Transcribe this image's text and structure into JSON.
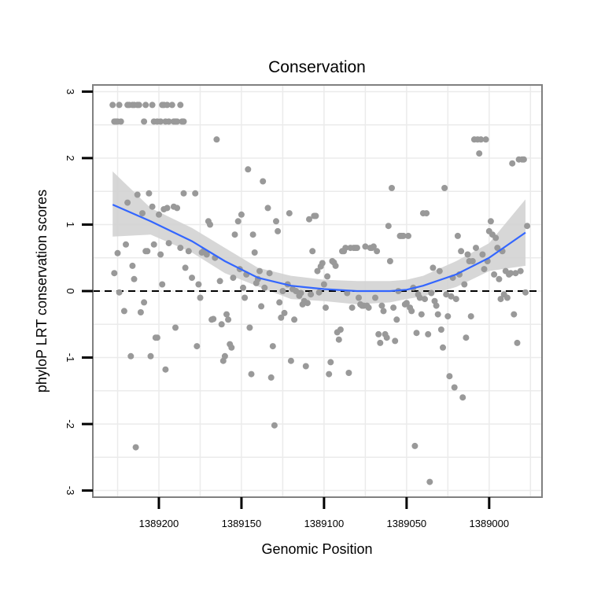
{
  "chart_data": {
    "type": "scatter",
    "title": "Conservation",
    "xlabel": "Genomic Position",
    "ylabel": "phyloP LRT conservation scores",
    "x_reversed": true,
    "xlim": [
      1389240,
      1388968
    ],
    "ylim": [
      -3.1,
      3.1
    ],
    "x_ticks": [
      1389200,
      1389150,
      1389100,
      1389050,
      1389000
    ],
    "x_tick_labels": [
      "1389200",
      "1389150",
      "1389100",
      "1389050",
      "1389000"
    ],
    "y_ticks": [
      -3,
      -2,
      -1,
      0,
      1,
      2,
      3
    ],
    "y_tick_labels": [
      "-3",
      "-2",
      "-1",
      "0",
      "1",
      "2",
      "3"
    ],
    "reference_line_y": 0,
    "colors": {
      "points": "#999999",
      "smooth_line": "#3366ff",
      "ribbon": "#d3d3d3",
      "panel_border": "#808080",
      "grid": "#ebebeb"
    },
    "points": [
      [
        1389228,
        2.8
      ],
      [
        1389227,
        2.55
      ],
      [
        1389226,
        2.55
      ],
      [
        1389225,
        2.55
      ],
      [
        1389224,
        2.8
      ],
      [
        1389223,
        2.55
      ],
      [
        1389219,
        2.8
      ],
      [
        1389218,
        2.8
      ],
      [
        1389216,
        2.8
      ],
      [
        1389215,
        2.8
      ],
      [
        1389213,
        2.8
      ],
      [
        1389212,
        2.8
      ],
      [
        1389209,
        2.55
      ],
      [
        1389208,
        2.8
      ],
      [
        1389204,
        2.8
      ],
      [
        1389203,
        2.55
      ],
      [
        1389201,
        2.55
      ],
      [
        1389199,
        2.55
      ],
      [
        1389198,
        2.8
      ],
      [
        1389197,
        2.8
      ],
      [
        1389196,
        2.55
      ],
      [
        1389195,
        2.8
      ],
      [
        1389194,
        2.55
      ],
      [
        1389192,
        2.8
      ],
      [
        1389191,
        2.55
      ],
      [
        1389190,
        2.55
      ],
      [
        1389189,
        2.55
      ],
      [
        1389187,
        2.8
      ],
      [
        1389186,
        2.55
      ],
      [
        1389185,
        2.55
      ],
      [
        1389227,
        0.27
      ],
      [
        1389225,
        0.57
      ],
      [
        1389224,
        -0.02
      ],
      [
        1389221,
        -0.3
      ],
      [
        1389220,
        0.7
      ],
      [
        1389219,
        1.33
      ],
      [
        1389217,
        -0.98
      ],
      [
        1389216,
        0.38
      ],
      [
        1389215,
        0.18
      ],
      [
        1389214,
        -2.35
      ],
      [
        1389213,
        1.45
      ],
      [
        1389211,
        -0.32
      ],
      [
        1389210,
        1.17
      ],
      [
        1389209,
        -0.17
      ],
      [
        1389208,
        0.6
      ],
      [
        1389207,
        0.6
      ],
      [
        1389206,
        1.47
      ],
      [
        1389205,
        -0.98
      ],
      [
        1389204,
        1.27
      ],
      [
        1389203,
        0.7
      ],
      [
        1389202,
        -0.7
      ],
      [
        1389201,
        -0.7
      ],
      [
        1389200,
        1.15
      ],
      [
        1389199,
        0.55
      ],
      [
        1389198,
        0.1
      ],
      [
        1389197,
        1.23
      ],
      [
        1389196,
        -1.18
      ],
      [
        1389195,
        1.25
      ],
      [
        1389194,
        0.72
      ],
      [
        1389191,
        1.27
      ],
      [
        1389190,
        -0.55
      ],
      [
        1389189,
        1.25
      ],
      [
        1389187,
        0.65
      ],
      [
        1389185,
        1.47
      ],
      [
        1389184,
        0.35
      ],
      [
        1389182,
        0.6
      ],
      [
        1389180,
        0.2
      ],
      [
        1389178,
        1.47
      ],
      [
        1389177,
        -0.83
      ],
      [
        1389176,
        0.1
      ],
      [
        1389175,
        -0.1
      ],
      [
        1389174,
        0.58
      ],
      [
        1389173,
        0.6
      ],
      [
        1389171,
        0.55
      ],
      [
        1389170,
        1.05
      ],
      [
        1389169,
        1.0
      ],
      [
        1389168,
        -0.43
      ],
      [
        1389167,
        -0.42
      ],
      [
        1389166,
        0.5
      ],
      [
        1389165,
        2.28
      ],
      [
        1389163,
        0.15
      ],
      [
        1389162,
        -0.5
      ],
      [
        1389161,
        -1.05
      ],
      [
        1389160,
        -0.98
      ],
      [
        1389159,
        -0.35
      ],
      [
        1389158,
        -0.43
      ],
      [
        1389157,
        -0.8
      ],
      [
        1389156,
        -0.85
      ],
      [
        1389155,
        0.2
      ],
      [
        1389154,
        0.85
      ],
      [
        1389152,
        1.05
      ],
      [
        1389151,
        0.33
      ],
      [
        1389150,
        1.15
      ],
      [
        1389149,
        0.05
      ],
      [
        1389148,
        -0.1
      ],
      [
        1389147,
        0.25
      ],
      [
        1389146,
        1.83
      ],
      [
        1389145,
        -0.55
      ],
      [
        1389144,
        -1.25
      ],
      [
        1389143,
        0.85
      ],
      [
        1389142,
        0.58
      ],
      [
        1389141,
        0.12
      ],
      [
        1389140,
        0.18
      ],
      [
        1389139,
        0.3
      ],
      [
        1389138,
        -0.23
      ],
      [
        1389137,
        1.65
      ],
      [
        1389136,
        0.05
      ],
      [
        1389134,
        1.25
      ],
      [
        1389133,
        0.27
      ],
      [
        1389132,
        -1.3
      ],
      [
        1389131,
        -0.83
      ],
      [
        1389130,
        -2.02
      ],
      [
        1389129,
        1.05
      ],
      [
        1389128,
        0.9
      ],
      [
        1389127,
        -0.17
      ],
      [
        1389126,
        -0.4
      ],
      [
        1389125,
        0.0
      ],
      [
        1389124,
        -0.33
      ],
      [
        1389122,
        0.1
      ],
      [
        1389121,
        1.17
      ],
      [
        1389120,
        -1.05
      ],
      [
        1389119,
        0.03
      ],
      [
        1389118,
        -0.43
      ],
      [
        1389117,
        0.0
      ],
      [
        1389115,
        -0.07
      ],
      [
        1389114,
        -0.03
      ],
      [
        1389113,
        -0.2
      ],
      [
        1389112,
        -0.15
      ],
      [
        1389111,
        -1.13
      ],
      [
        1389110,
        -0.18
      ],
      [
        1389109,
        1.08
      ],
      [
        1389108,
        -0.05
      ],
      [
        1389107,
        0.6
      ],
      [
        1389106,
        1.13
      ],
      [
        1389105,
        1.13
      ],
      [
        1389104,
        0.3
      ],
      [
        1389103,
        -0.02
      ],
      [
        1389102,
        0.37
      ],
      [
        1389101,
        0.42
      ],
      [
        1389100,
        0.1
      ],
      [
        1389099,
        -0.25
      ],
      [
        1389098,
        0.22
      ],
      [
        1389097,
        -1.25
      ],
      [
        1389096,
        -1.07
      ],
      [
        1389095,
        0.45
      ],
      [
        1389094,
        0.43
      ],
      [
        1389093,
        0.38
      ],
      [
        1389092,
        -0.62
      ],
      [
        1389091,
        -0.73
      ],
      [
        1389090,
        -0.58
      ],
      [
        1389089,
        0.6
      ],
      [
        1389088,
        0.6
      ],
      [
        1389087,
        0.65
      ],
      [
        1389086,
        -0.03
      ],
      [
        1389085,
        -1.23
      ],
      [
        1389084,
        0.65
      ],
      [
        1389083,
        -0.25
      ],
      [
        1389082,
        0.65
      ],
      [
        1389081,
        0.65
      ],
      [
        1389080,
        0.65
      ],
      [
        1389079,
        -0.1
      ],
      [
        1389078,
        -0.2
      ],
      [
        1389077,
        -0.22
      ],
      [
        1389076,
        -0.22
      ],
      [
        1389075,
        0.67
      ],
      [
        1389074,
        -0.22
      ],
      [
        1389073,
        -0.25
      ],
      [
        1389072,
        0.65
      ],
      [
        1389071,
        0.65
      ],
      [
        1389070,
        0.67
      ],
      [
        1389069,
        -0.1
      ],
      [
        1389068,
        0.6
      ],
      [
        1389067,
        -0.65
      ],
      [
        1389066,
        -0.78
      ],
      [
        1389065,
        -0.22
      ],
      [
        1389064,
        -0.3
      ],
      [
        1389063,
        -0.65
      ],
      [
        1389062,
        -0.7
      ],
      [
        1389061,
        0.98
      ],
      [
        1389060,
        0.45
      ],
      [
        1389059,
        1.55
      ],
      [
        1389058,
        -0.25
      ],
      [
        1389057,
        -0.75
      ],
      [
        1389056,
        -0.43
      ],
      [
        1389055,
        0.0
      ],
      [
        1389054,
        0.83
      ],
      [
        1389053,
        0.83
      ],
      [
        1389052,
        0.83
      ],
      [
        1389051,
        -0.2
      ],
      [
        1389050,
        -0.18
      ],
      [
        1389049,
        0.83
      ],
      [
        1389048,
        -0.25
      ],
      [
        1389047,
        -0.3
      ],
      [
        1389046,
        0.05
      ],
      [
        1389045,
        -2.33
      ],
      [
        1389044,
        -0.63
      ],
      [
        1389043,
        -0.05
      ],
      [
        1389042,
        -0.1
      ],
      [
        1389041,
        -0.35
      ],
      [
        1389040,
        1.17
      ],
      [
        1389039,
        -0.12
      ],
      [
        1389038,
        1.17
      ],
      [
        1389037,
        -0.65
      ],
      [
        1389036,
        -2.87
      ],
      [
        1389035,
        -0.03
      ],
      [
        1389034,
        0.35
      ],
      [
        1389033,
        -0.15
      ],
      [
        1389032,
        -0.22
      ],
      [
        1389031,
        -0.35
      ],
      [
        1389030,
        0.3
      ],
      [
        1389029,
        -0.58
      ],
      [
        1389028,
        -0.85
      ],
      [
        1389027,
        1.55
      ],
      [
        1389026,
        -0.05
      ],
      [
        1389025,
        -0.38
      ],
      [
        1389024,
        -1.28
      ],
      [
        1389023,
        -0.08
      ],
      [
        1389022,
        0.2
      ],
      [
        1389021,
        -1.45
      ],
      [
        1389020,
        -0.12
      ],
      [
        1389019,
        0.83
      ],
      [
        1389018,
        0.25
      ],
      [
        1389017,
        0.6
      ],
      [
        1389016,
        -1.6
      ],
      [
        1389015,
        0.1
      ],
      [
        1389014,
        -0.7
      ],
      [
        1389013,
        0.55
      ],
      [
        1389012,
        0.45
      ],
      [
        1389011,
        -0.38
      ],
      [
        1389010,
        0.45
      ],
      [
        1389009,
        2.28
      ],
      [
        1389008,
        0.65
      ],
      [
        1389007,
        2.28
      ],
      [
        1389006,
        2.07
      ],
      [
        1389005,
        2.28
      ],
      [
        1389004,
        0.55
      ],
      [
        1389003,
        0.33
      ],
      [
        1389002,
        2.28
      ],
      [
        1389001,
        0.45
      ],
      [
        1389000,
        0.9
      ],
      [
        1388999,
        1.05
      ],
      [
        1388998,
        0.85
      ],
      [
        1388997,
        0.25
      ],
      [
        1388996,
        0.8
      ],
      [
        1388995,
        0.65
      ],
      [
        1388994,
        0.18
      ],
      [
        1388993,
        -0.12
      ],
      [
        1388992,
        0.6
      ],
      [
        1388991,
        -0.05
      ],
      [
        1388990,
        0.3
      ],
      [
        1388989,
        -0.1
      ],
      [
        1388988,
        0.25
      ],
      [
        1388987,
        0.27
      ],
      [
        1388986,
        1.92
      ],
      [
        1388985,
        -0.35
      ],
      [
        1388984,
        0.27
      ],
      [
        1388983,
        -0.78
      ],
      [
        1388982,
        1.98
      ],
      [
        1388981,
        0.3
      ],
      [
        1388980,
        1.98
      ],
      [
        1388979,
        1.98
      ],
      [
        1388978,
        -0.02
      ],
      [
        1388977,
        0.98
      ]
    ],
    "smooth": {
      "x": [
        1389228,
        1389205,
        1389180,
        1389160,
        1389140,
        1389120,
        1389100,
        1389080,
        1389060,
        1389050,
        1389040,
        1389020,
        1389000,
        1388978
      ],
      "y": [
        1.3,
        1.05,
        0.75,
        0.45,
        0.2,
        0.08,
        0.03,
        0.0,
        0.0,
        0.02,
        0.08,
        0.25,
        0.5,
        0.88
      ],
      "upper": [
        1.8,
        1.25,
        0.95,
        0.65,
        0.35,
        0.23,
        0.17,
        0.15,
        0.15,
        0.17,
        0.23,
        0.45,
        0.72,
        1.38
      ],
      "lower": [
        0.82,
        0.85,
        0.58,
        0.27,
        0.07,
        -0.12,
        -0.15,
        -0.2,
        -0.17,
        -0.12,
        -0.08,
        0.06,
        0.3,
        0.38
      ]
    }
  }
}
